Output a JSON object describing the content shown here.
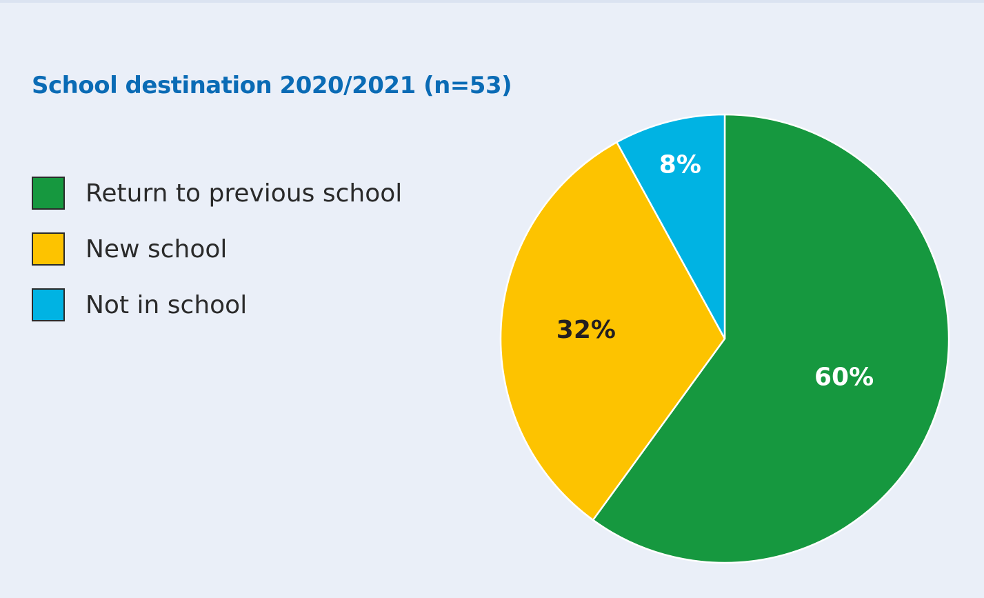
{
  "chart_data": {
    "type": "pie",
    "title": "School destination 2020/2021 (n=53)",
    "legend_position": "left",
    "start_angle": "12 o'clock, clockwise",
    "slices": [
      {
        "name": "Return to previous school",
        "value": 60,
        "label": "60%",
        "color": "#16983f",
        "label_color": "#ffffff"
      },
      {
        "name": "New school",
        "value": 32,
        "label": "32%",
        "color": "#fdc300",
        "label_color": "#231f20"
      },
      {
        "name": "Not in school",
        "value": 8,
        "label": "8%",
        "color": "#00b3e3",
        "label_color": "#ffffff"
      }
    ]
  }
}
